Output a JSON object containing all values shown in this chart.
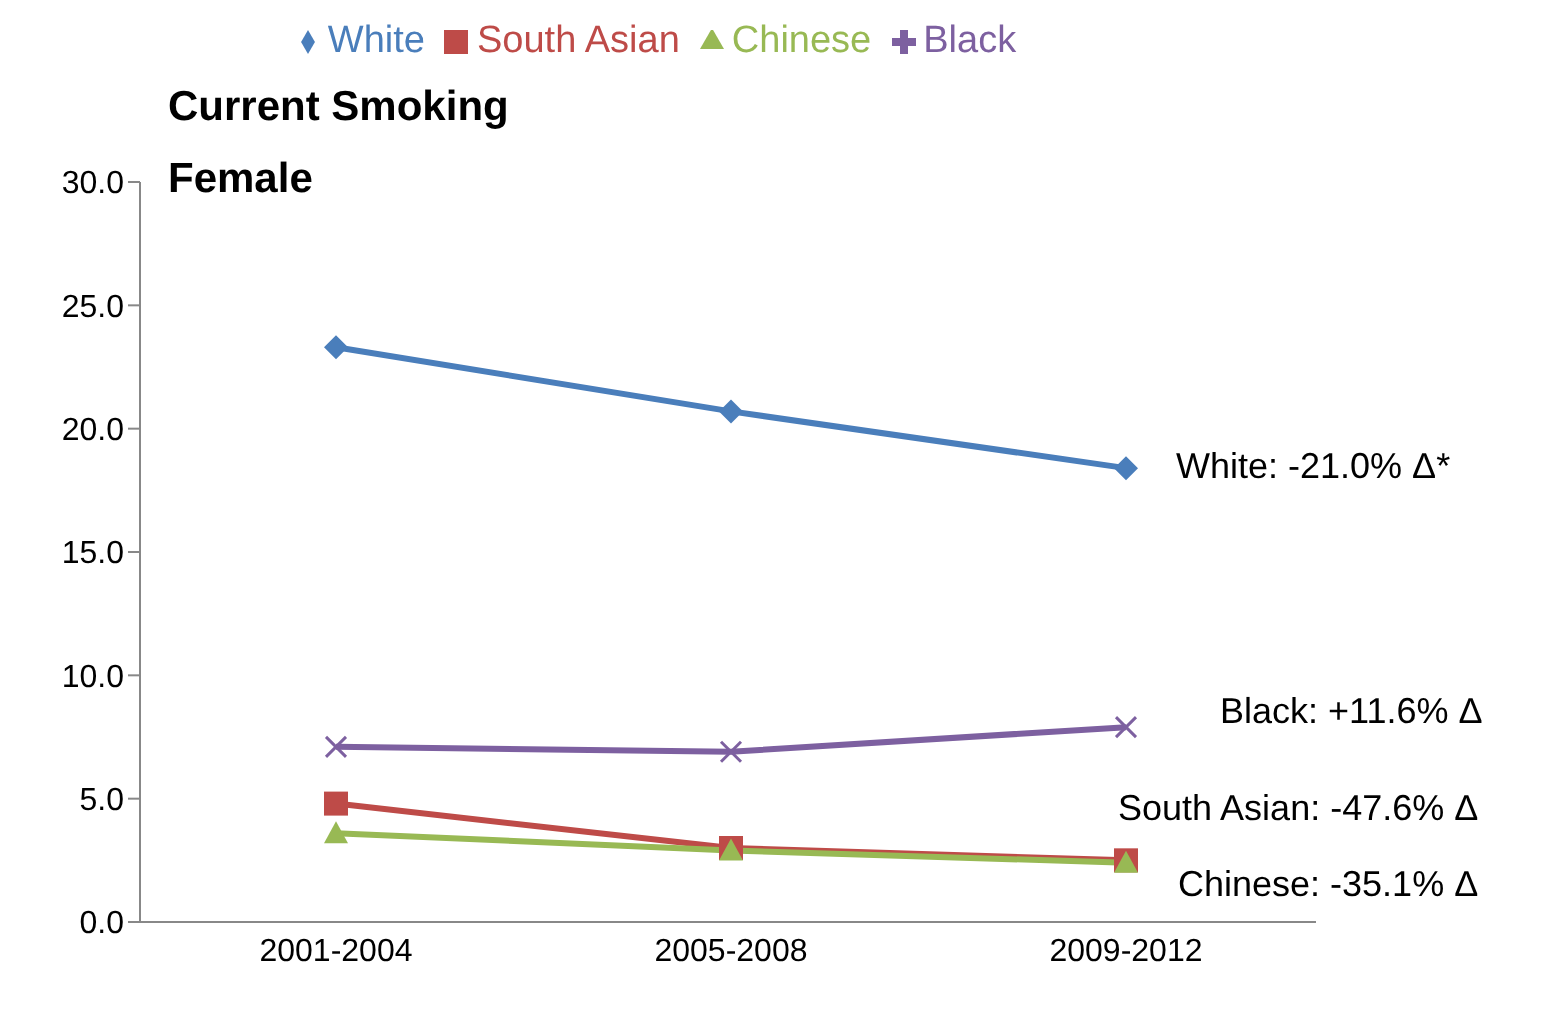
{
  "chart_data": {
    "type": "line",
    "title": "Current Smoking Female",
    "categories": [
      "2001-2004",
      "2005-2008",
      "2009-2012"
    ],
    "series": [
      {
        "name": "White",
        "color": "#4a7ebb",
        "values": [
          23.3,
          20.7,
          18.4
        ],
        "marker": "diamond"
      },
      {
        "name": "South Asian",
        "color": "#be4b48",
        "values": [
          4.8,
          3.0,
          2.5
        ],
        "marker": "square"
      },
      {
        "name": "Chinese",
        "color": "#98b954",
        "values": [
          3.6,
          2.9,
          2.4
        ],
        "marker": "triangle"
      },
      {
        "name": "Black",
        "color": "#7d60a0",
        "values": [
          7.1,
          6.9,
          7.9
        ],
        "marker": "cross"
      }
    ],
    "ylim": [
      0,
      30
    ],
    "yticks": [
      {
        "value": 0,
        "label": "0.0"
      },
      {
        "value": 5,
        "label": "5.0"
      },
      {
        "value": 10,
        "label": "10.0"
      },
      {
        "value": 15,
        "label": "15.0"
      },
      {
        "value": 20,
        "label": "20.0"
      },
      {
        "value": 25,
        "label": "25.0"
      },
      {
        "value": 30,
        "label": "30.0"
      }
    ],
    "grid": false,
    "legend": "top",
    "annotations": [
      {
        "text": "White: -21.0% Δ*",
        "x": "2009-2012",
        "y": 18.4
      },
      {
        "text": "Black: +11.6% Δ",
        "x": "2009-2012",
        "y": 7.9
      },
      {
        "text": "South Asian: -47.6% Δ",
        "x": "2009-2012",
        "y": 2.5
      },
      {
        "text": "Chinese: -35.1% Δ",
        "x": "2009-2012",
        "y": 2.4
      }
    ]
  }
}
